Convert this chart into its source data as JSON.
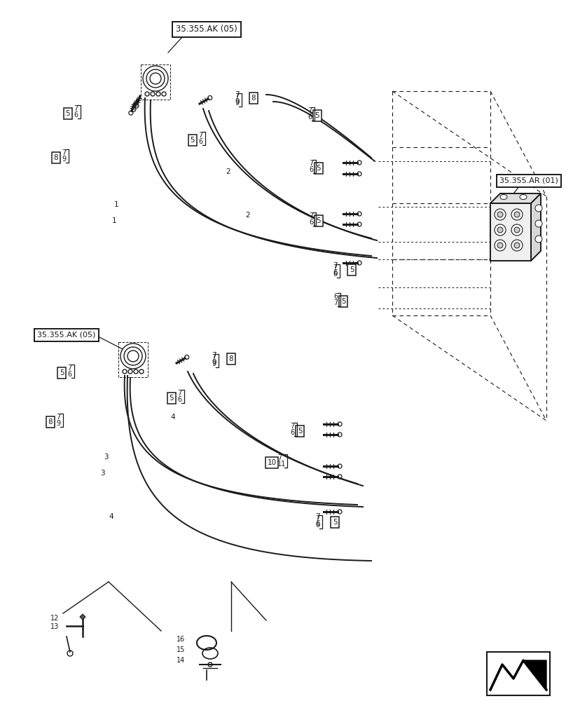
{
  "bg_color": "#ffffff",
  "line_color": "#1a1a1a",
  "ref_box_top": "35.355.AK (05)",
  "ref_box_mid": "35.355.AK (05)",
  "ref_box_right": "35.355.AR (01)"
}
